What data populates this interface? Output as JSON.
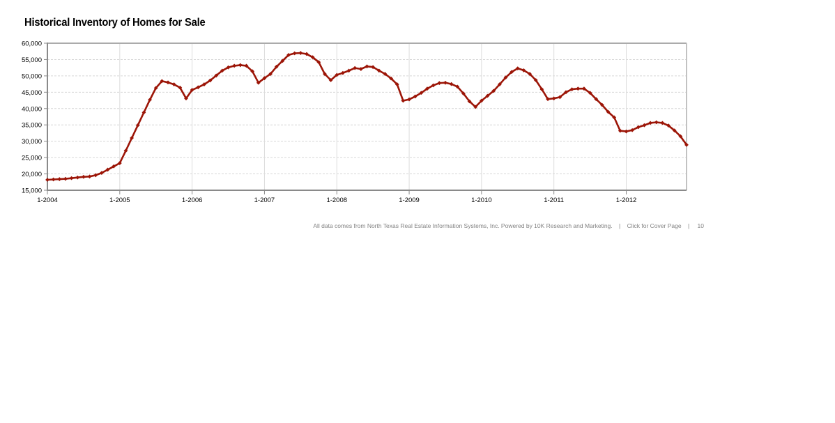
{
  "title": "Historical Inventory of Homes for Sale",
  "footer": {
    "disclaimer": "All data comes from North Texas Real Estate Information Systems, Inc. Powered by 10K Research and Marketing.",
    "separator": "|",
    "cover_link": "Click for Cover Page",
    "page_number": "10"
  },
  "chart_data": {
    "type": "line",
    "title": "Historical Inventory of Homes for Sale",
    "x_unit": "month",
    "x_range": [
      "1-2004",
      "11-2012"
    ],
    "x_tick_labels": [
      "1-2004",
      "1-2005",
      "1-2006",
      "1-2007",
      "1-2008",
      "1-2009",
      "1-2010",
      "1-2011",
      "1-2012"
    ],
    "y_tick_labels": [
      "60,000",
      "55,000",
      "50,000",
      "45,000",
      "40,000",
      "35,000",
      "30,000",
      "25,000",
      "20,000",
      "15,000"
    ],
    "ylim": [
      15000,
      60000
    ],
    "y_step": 5000,
    "legend": "none",
    "grid": {
      "horizontal": "dashed-light-gray",
      "vertical": "solid-light-gray-at-year-ticks"
    },
    "marker": "diamond",
    "series": [
      {
        "color": "#9c1507",
        "values": [
          18200,
          18300,
          18400,
          18500,
          18700,
          18900,
          19100,
          19200,
          19600,
          20300,
          21300,
          22300,
          23300,
          27100,
          31000,
          34900,
          38800,
          42700,
          46300,
          48400,
          48000,
          47400,
          46400,
          43100,
          45700,
          46500,
          47400,
          48600,
          50100,
          51600,
          52600,
          53100,
          53300,
          53100,
          51400,
          47900,
          49300,
          50600,
          52800,
          54600,
          56400,
          56900,
          57000,
          56700,
          55700,
          54200,
          50600,
          48700,
          50300,
          50900,
          51600,
          52400,
          52100,
          52900,
          52700,
          51600,
          50600,
          49200,
          47400,
          42400,
          42800,
          43700,
          44800,
          46100,
          47100,
          47800,
          47900,
          47500,
          46700,
          44600,
          42200,
          40500,
          42400,
          43900,
          45400,
          47400,
          49500,
          51200,
          52300,
          51700,
          50600,
          48700,
          45900,
          42900,
          43100,
          43500,
          45000,
          45900,
          46100,
          46100,
          44800,
          42900,
          41100,
          39000,
          37300,
          33200,
          33000,
          33400,
          34300,
          34900,
          35600,
          35800,
          35600,
          34800,
          33300,
          31500,
          28900
        ]
      }
    ]
  }
}
